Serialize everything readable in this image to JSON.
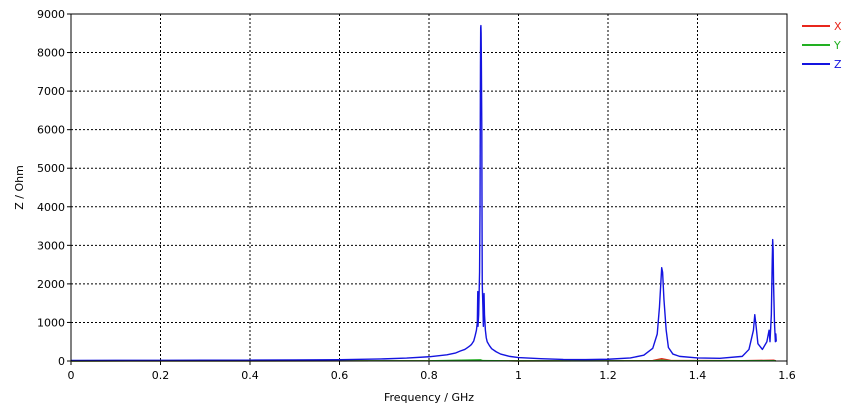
{
  "chart_data": {
    "type": "line",
    "xlabel": "Frequency / GHz",
    "ylabel": "Z / Ohm",
    "xlim": [
      0,
      1.6
    ],
    "ylim": [
      0,
      9000
    ],
    "x_ticks": [
      "0",
      "0.2",
      "0.4",
      "0.6",
      "0.8",
      "1",
      "1.2",
      "1.4",
      "1.6"
    ],
    "y_ticks": [
      "0",
      "1000",
      "2000",
      "3000",
      "4000",
      "5000",
      "6000",
      "7000",
      "8000",
      "9000"
    ],
    "grid": true,
    "legend_position": "top-right",
    "series": [
      {
        "name": "X",
        "color": "#e8261c",
        "points": [
          [
            0,
            0
          ],
          [
            0.8,
            5
          ],
          [
            0.915,
            15
          ],
          [
            0.92,
            8
          ],
          [
            1.0,
            3
          ],
          [
            1.3,
            10
          ],
          [
            1.32,
            60
          ],
          [
            1.34,
            15
          ],
          [
            1.5,
            8
          ],
          [
            1.57,
            20
          ],
          [
            1.575,
            5
          ]
        ]
      },
      {
        "name": "Y",
        "color": "#22b022",
        "points": [
          [
            0,
            0
          ],
          [
            0.8,
            5
          ],
          [
            0.915,
            30
          ],
          [
            0.92,
            10
          ],
          [
            1.0,
            3
          ],
          [
            1.3,
            5
          ],
          [
            1.32,
            20
          ],
          [
            1.34,
            5
          ],
          [
            1.57,
            8
          ],
          [
            1.575,
            3
          ]
        ]
      },
      {
        "name": "Z",
        "color": "#1414e0",
        "points": [
          [
            0,
            15
          ],
          [
            0.1,
            16
          ],
          [
            0.2,
            18
          ],
          [
            0.3,
            20
          ],
          [
            0.4,
            22
          ],
          [
            0.5,
            26
          ],
          [
            0.6,
            35
          ],
          [
            0.7,
            55
          ],
          [
            0.75,
            75
          ],
          [
            0.8,
            110
          ],
          [
            0.84,
            160
          ],
          [
            0.86,
            210
          ],
          [
            0.87,
            260
          ],
          [
            0.88,
            300
          ],
          [
            0.885,
            340
          ],
          [
            0.89,
            380
          ],
          [
            0.895,
            430
          ],
          [
            0.9,
            520
          ],
          [
            0.903,
            650
          ],
          [
            0.906,
            800
          ],
          [
            0.908,
            1000
          ],
          [
            0.909,
            1800
          ],
          [
            0.9095,
            900
          ],
          [
            0.911,
            1200
          ],
          [
            0.913,
            2300
          ],
          [
            0.914,
            4000
          ],
          [
            0.915,
            7600
          ],
          [
            0.9155,
            8650
          ],
          [
            0.916,
            8700
          ],
          [
            0.9165,
            8500
          ],
          [
            0.917,
            7800
          ],
          [
            0.918,
            6000
          ],
          [
            0.9185,
            3800
          ],
          [
            0.919,
            2000
          ],
          [
            0.9205,
            1400
          ],
          [
            0.9215,
            900
          ],
          [
            0.923,
            1750
          ],
          [
            0.924,
            1200
          ],
          [
            0.926,
            800
          ],
          [
            0.928,
            600
          ],
          [
            0.93,
            500
          ],
          [
            0.935,
            400
          ],
          [
            0.94,
            320
          ],
          [
            0.95,
            240
          ],
          [
            0.96,
            180
          ],
          [
            0.98,
            120
          ],
          [
            1.0,
            90
          ],
          [
            1.05,
            60
          ],
          [
            1.1,
            40
          ],
          [
            1.15,
            38
          ],
          [
            1.2,
            45
          ],
          [
            1.25,
            80
          ],
          [
            1.28,
            150
          ],
          [
            1.3,
            330
          ],
          [
            1.31,
            700
          ],
          [
            1.315,
            1400
          ],
          [
            1.32,
            2420
          ],
          [
            1.322,
            2300
          ],
          [
            1.325,
            1600
          ],
          [
            1.33,
            800
          ],
          [
            1.335,
            350
          ],
          [
            1.345,
            180
          ],
          [
            1.36,
            120
          ],
          [
            1.4,
            80
          ],
          [
            1.45,
            70
          ],
          [
            1.5,
            120
          ],
          [
            1.515,
            300
          ],
          [
            1.525,
            800
          ],
          [
            1.528,
            1200
          ],
          [
            1.531,
            900
          ],
          [
            1.535,
            450
          ],
          [
            1.545,
            300
          ],
          [
            1.555,
            500
          ],
          [
            1.56,
            800
          ],
          [
            1.562,
            500
          ],
          [
            1.565,
            1200
          ],
          [
            1.567,
            2600
          ],
          [
            1.568,
            3150
          ],
          [
            1.569,
            2900
          ],
          [
            1.57,
            2000
          ],
          [
            1.572,
            1000
          ],
          [
            1.574,
            500
          ],
          [
            1.575,
            700
          ],
          [
            1.576,
            500
          ]
        ]
      }
    ]
  }
}
